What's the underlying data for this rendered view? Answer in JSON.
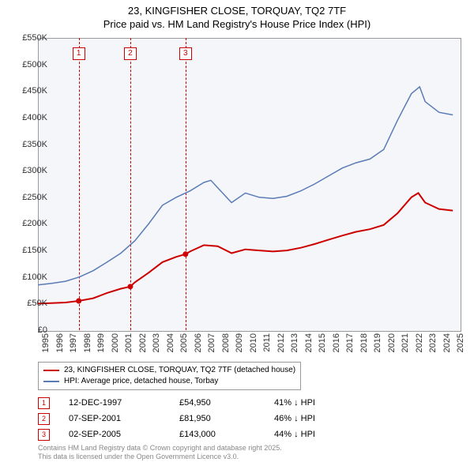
{
  "title_line1": "23, KINGFISHER CLOSE, TORQUAY, TQ2 7TF",
  "title_line2": "Price paid vs. HM Land Registry's House Price Index (HPI)",
  "chart": {
    "type": "line",
    "background_color": "#f5f6fa",
    "grid_color": "#dcdce0",
    "border_color": "#999999",
    "x_start": 1995,
    "x_end": 2025.5,
    "xtick_step": 1,
    "xticks": [
      "1995",
      "1996",
      "1997",
      "1998",
      "1999",
      "2000",
      "2001",
      "2002",
      "2003",
      "2004",
      "2005",
      "2006",
      "2007",
      "2008",
      "2009",
      "2010",
      "2011",
      "2012",
      "2013",
      "2014",
      "2015",
      "2016",
      "2017",
      "2018",
      "2019",
      "2020",
      "2021",
      "2022",
      "2023",
      "2024",
      "2025"
    ],
    "ylim": [
      0,
      550
    ],
    "ytick_step": 50,
    "yticks": [
      "£0",
      "£50K",
      "£100K",
      "£150K",
      "£200K",
      "£250K",
      "£300K",
      "£350K",
      "£400K",
      "£450K",
      "£500K",
      "£550K"
    ],
    "label_fontsize": 11,
    "series": [
      {
        "name": "23, KINGFISHER CLOSE, TORQUAY, TQ2 7TF (detached house)",
        "color": "#cc0000",
        "width": 2,
        "data": [
          [
            1995,
            50
          ],
          [
            1996,
            51
          ],
          [
            1997,
            52
          ],
          [
            1997.95,
            55
          ],
          [
            1999,
            60
          ],
          [
            2000,
            70
          ],
          [
            2001,
            78
          ],
          [
            2001.68,
            82
          ],
          [
            2002,
            90
          ],
          [
            2003,
            108
          ],
          [
            2004,
            128
          ],
          [
            2005,
            138
          ],
          [
            2005.67,
            143
          ],
          [
            2006,
            148
          ],
          [
            2007,
            160
          ],
          [
            2008,
            158
          ],
          [
            2009,
            145
          ],
          [
            2010,
            152
          ],
          [
            2011,
            150
          ],
          [
            2012,
            148
          ],
          [
            2013,
            150
          ],
          [
            2014,
            155
          ],
          [
            2015,
            162
          ],
          [
            2016,
            170
          ],
          [
            2017,
            178
          ],
          [
            2018,
            185
          ],
          [
            2019,
            190
          ],
          [
            2020,
            198
          ],
          [
            2021,
            220
          ],
          [
            2022,
            250
          ],
          [
            2022.5,
            258
          ],
          [
            2023,
            240
          ],
          [
            2024,
            228
          ],
          [
            2025,
            225
          ]
        ]
      },
      {
        "name": "HPI: Average price, detached house, Torbay",
        "color": "#5b7bb5",
        "width": 1.5,
        "data": [
          [
            1995,
            85
          ],
          [
            1996,
            88
          ],
          [
            1997,
            92
          ],
          [
            1998,
            100
          ],
          [
            1999,
            112
          ],
          [
            2000,
            128
          ],
          [
            2001,
            145
          ],
          [
            2002,
            168
          ],
          [
            2003,
            200
          ],
          [
            2004,
            235
          ],
          [
            2005,
            250
          ],
          [
            2006,
            262
          ],
          [
            2007,
            278
          ],
          [
            2007.5,
            282
          ],
          [
            2008,
            268
          ],
          [
            2009,
            240
          ],
          [
            2010,
            258
          ],
          [
            2011,
            250
          ],
          [
            2012,
            248
          ],
          [
            2013,
            252
          ],
          [
            2014,
            262
          ],
          [
            2015,
            275
          ],
          [
            2016,
            290
          ],
          [
            2017,
            305
          ],
          [
            2018,
            315
          ],
          [
            2019,
            322
          ],
          [
            2020,
            340
          ],
          [
            2021,
            395
          ],
          [
            2022,
            445
          ],
          [
            2022.6,
            458
          ],
          [
            2023,
            430
          ],
          [
            2024,
            410
          ],
          [
            2025,
            405
          ]
        ]
      }
    ],
    "markers": [
      {
        "x": 1997.95,
        "y": 55,
        "color": "#cc0000"
      },
      {
        "x": 2001.68,
        "y": 82,
        "color": "#cc0000"
      },
      {
        "x": 2005.67,
        "y": 143,
        "color": "#cc0000"
      }
    ],
    "events": [
      {
        "n": "1",
        "x": 1997.95,
        "color": "#cc0000",
        "date": "12-DEC-1997",
        "price": "£54,950",
        "pct": "41% ↓ HPI"
      },
      {
        "n": "2",
        "x": 2001.68,
        "color": "#cc0000",
        "date": "07-SEP-2001",
        "price": "£81,950",
        "pct": "46% ↓ HPI"
      },
      {
        "n": "3",
        "x": 2005.67,
        "color": "#cc0000",
        "date": "02-SEP-2005",
        "price": "£143,000",
        "pct": "44% ↓ HPI"
      }
    ]
  },
  "legend": {
    "border_color": "#999999"
  },
  "footer_line1": "Contains HM Land Registry data © Crown copyright and database right 2025.",
  "footer_line2": "This data is licensed under the Open Government Licence v3.0."
}
